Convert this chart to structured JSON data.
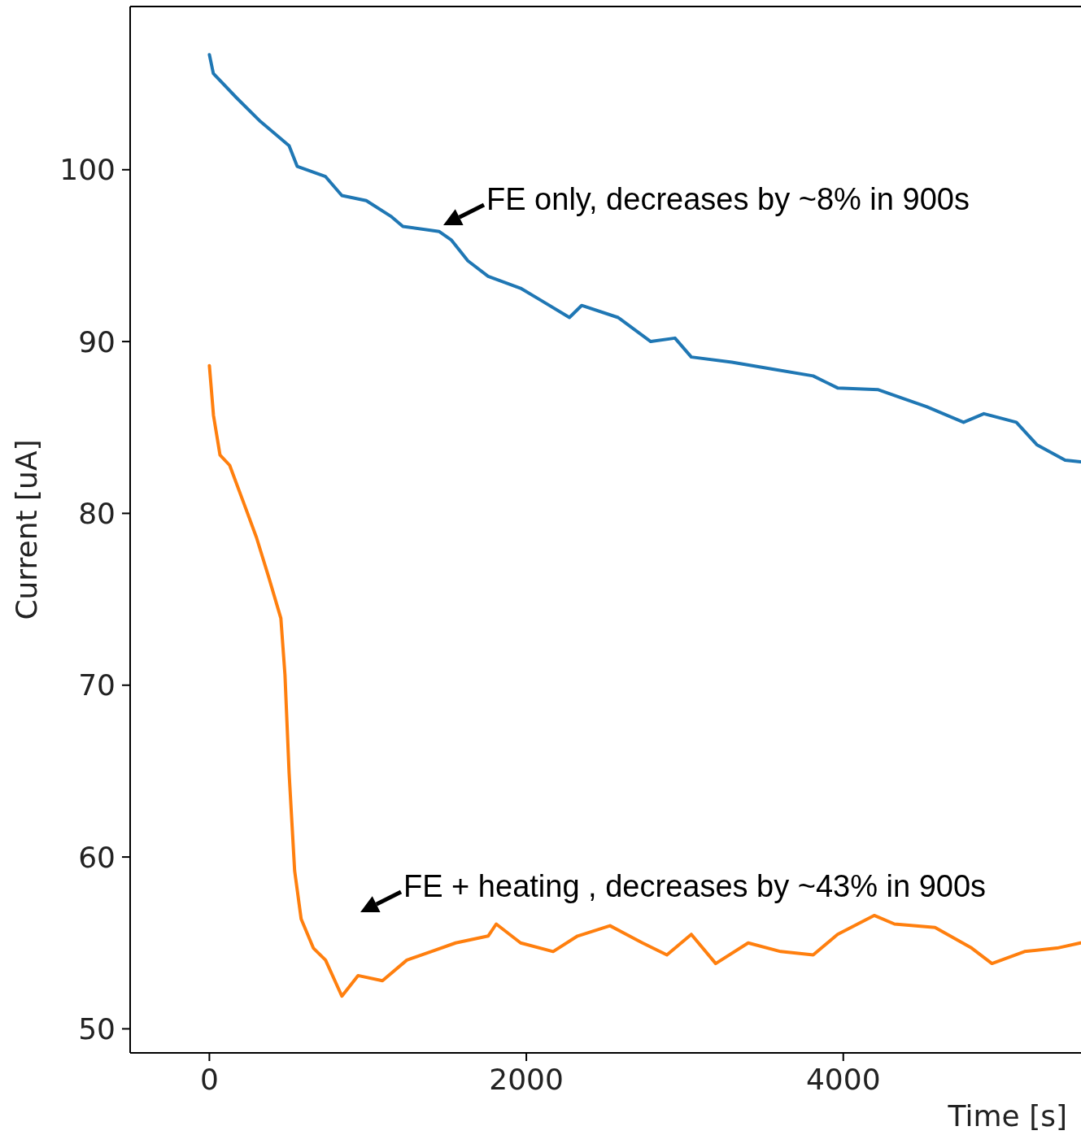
{
  "chart_data": {
    "type": "line",
    "xlabel": "Time [s]",
    "ylabel": "Current [uA]",
    "xlim": [
      -500,
      5500
    ],
    "ylim": [
      48.6,
      109.5
    ],
    "xticks": [
      0,
      2000,
      4000
    ],
    "yticks": [
      50,
      60,
      70,
      80,
      90,
      100
    ],
    "grid": false,
    "marker": "none",
    "line_style": "solid",
    "series": [
      {
        "color": "#1f77b4",
        "x": [
          0,
          25,
          170,
          323,
          503,
          554,
          733,
          836,
          990,
          1144,
          1221,
          1451,
          1528,
          1631,
          1759,
          1964,
          2092,
          2272,
          2349,
          2579,
          2785,
          2938,
          3041,
          3297,
          3554,
          3810,
          3964,
          4221,
          4374,
          4528,
          4759,
          4887,
          5092,
          5221,
          5400,
          5497
        ],
        "values": [
          106.7,
          105.6,
          104.2,
          102.8,
          101.4,
          100.2,
          99.6,
          98.5,
          98.2,
          97.3,
          96.7,
          96.4,
          95.9,
          94.7,
          93.8,
          93.1,
          92.4,
          91.4,
          92.1,
          91.4,
          90.0,
          90.2,
          89.1,
          88.8,
          88.4,
          88.0,
          87.3,
          87.2,
          86.7,
          86.2,
          85.3,
          85.8,
          85.3,
          84.0,
          83.1,
          83.0
        ]
      },
      {
        "color": "#ff7f0e",
        "x": [
          0,
          26,
          67,
          128,
          221,
          297,
          374,
          451,
          477,
          503,
          538,
          579,
          656,
          733,
          836,
          938,
          1092,
          1246,
          1400,
          1554,
          1759,
          1810,
          1964,
          2169,
          2323,
          2528,
          2733,
          2887,
          3041,
          3195,
          3400,
          3605,
          3810,
          3964,
          4195,
          4323,
          4579,
          4810,
          4938,
          5144,
          5349,
          5497
        ],
        "values": [
          88.6,
          85.7,
          83.4,
          82.8,
          80.5,
          78.6,
          76.3,
          73.9,
          70.6,
          64.9,
          59.2,
          56.4,
          54.7,
          54.0,
          51.9,
          53.1,
          52.8,
          54.0,
          54.5,
          55.0,
          55.4,
          56.1,
          55.0,
          54.5,
          55.4,
          56.0,
          55.0,
          54.3,
          55.5,
          53.8,
          55.0,
          54.5,
          54.3,
          55.5,
          56.6,
          56.1,
          55.9,
          54.7,
          53.8,
          54.5,
          54.7,
          55.0
        ]
      }
    ],
    "annotations": [
      "FE only, decreases by ~8% in 900s",
      "FE + heating , decreases by ~43% in 900s"
    ]
  }
}
